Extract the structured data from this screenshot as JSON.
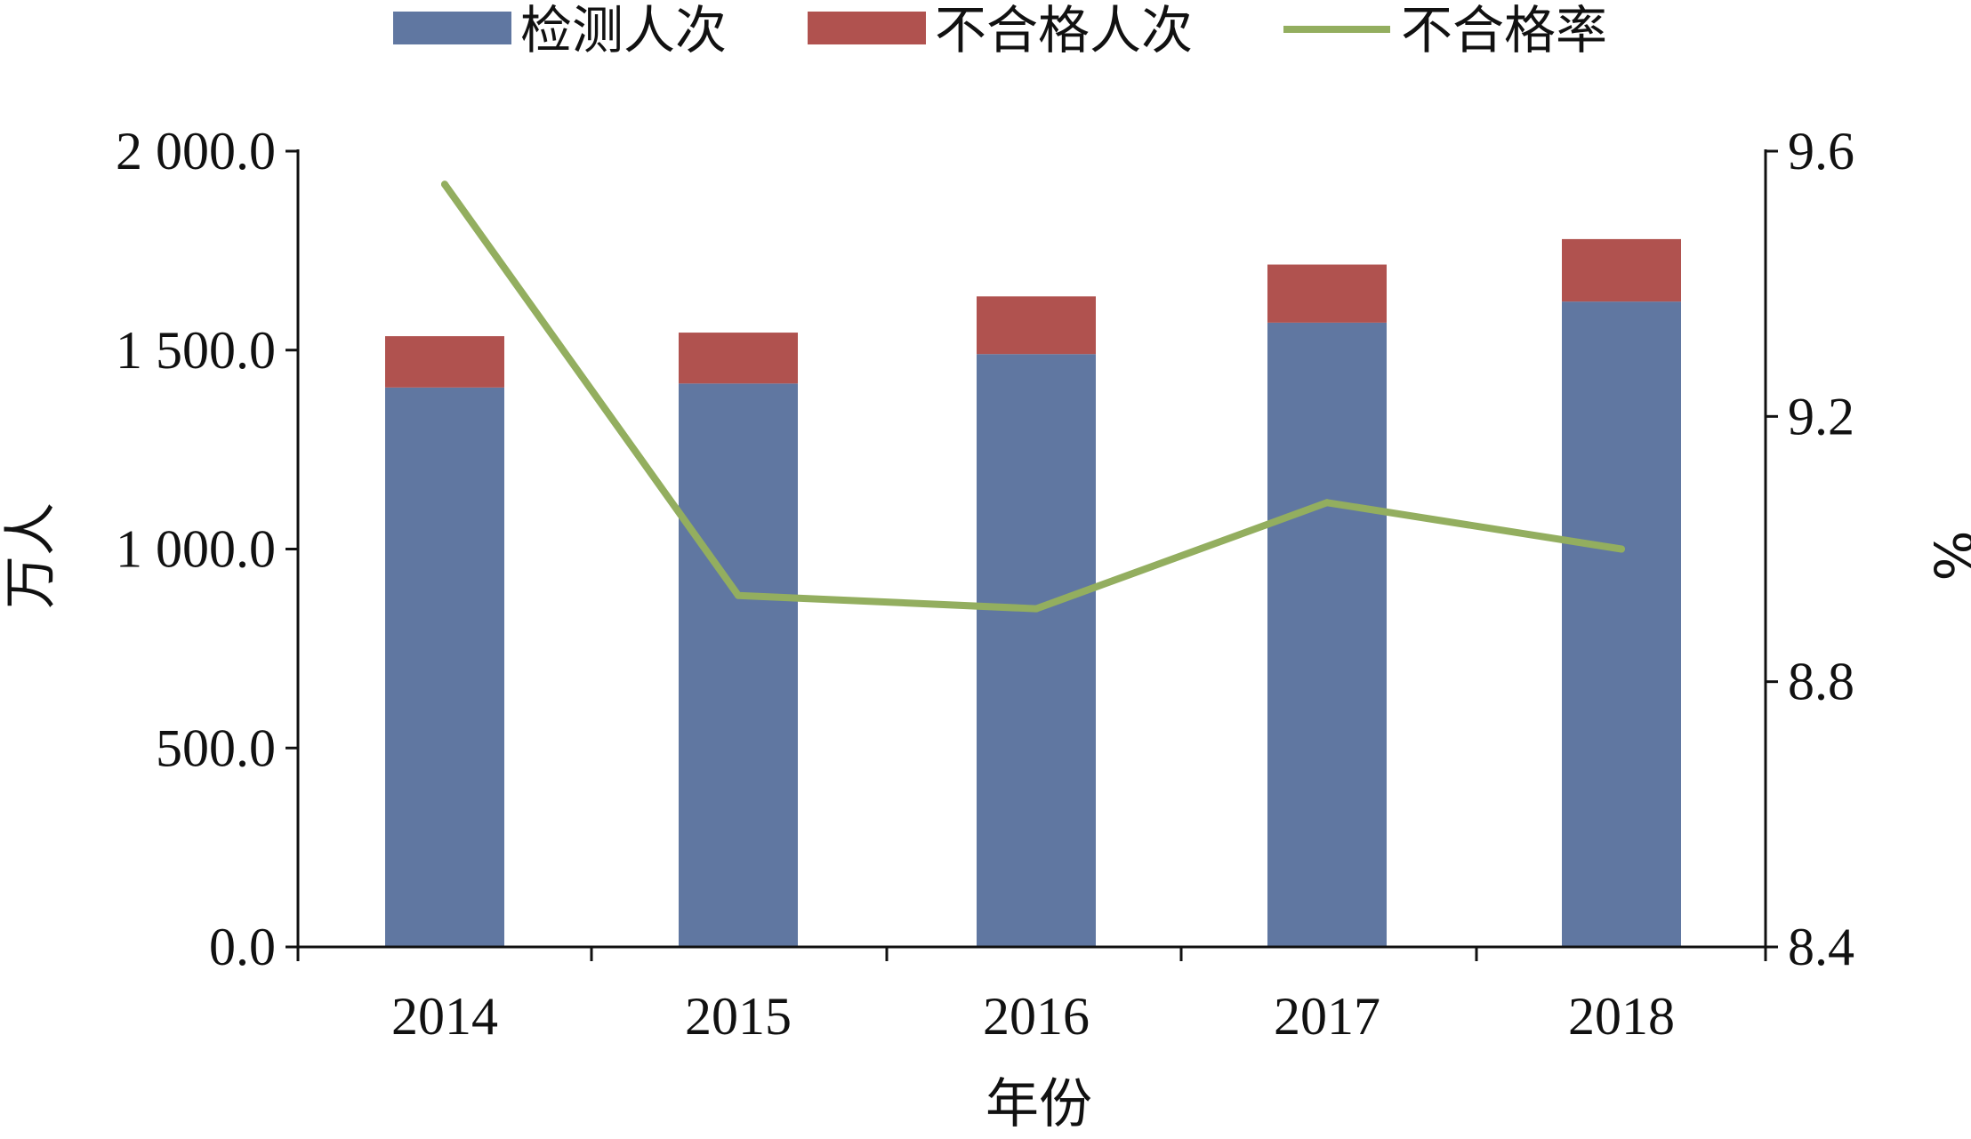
{
  "chart_data": {
    "type": "bar",
    "categories": [
      "2014",
      "2015",
      "2016",
      "2017",
      "2018"
    ],
    "series": [
      {
        "name": "检测人次",
        "kind": "bar",
        "stack": "total",
        "axis": "left",
        "color": "#6077A1",
        "values": [
          1406,
          1416,
          1490,
          1569,
          1622
        ]
      },
      {
        "name": "不合格人次",
        "kind": "bar",
        "stack": "total",
        "axis": "left",
        "color": "#B0524F",
        "values": [
          129,
          128,
          145,
          146,
          157
        ]
      },
      {
        "name": "不合格率",
        "kind": "line",
        "axis": "right",
        "color": "#93AE5F",
        "values": [
          9.55,
          8.93,
          8.91,
          9.07,
          9.0
        ]
      }
    ],
    "xlabel": "年份",
    "ylabel": "万人",
    "y2label": "%",
    "ylim": [
      0,
      2000
    ],
    "y2lim": [
      8.4,
      9.6
    ],
    "yticks": [
      "0.0",
      "500.0",
      "1 000.0",
      "1 500.0",
      "2 000.0"
    ],
    "y2ticks": [
      "8.4",
      "8.8",
      "9.2",
      "9.6"
    ],
    "legend_position": "top",
    "grid": false
  }
}
